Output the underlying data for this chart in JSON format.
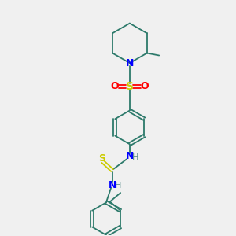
{
  "background_color": "#f0f0f0",
  "bond_color": "#2d7a6b",
  "n_color": "#0000ff",
  "s_color": "#cccc00",
  "o_color": "#ff0000",
  "h_color": "#5a8a8a",
  "line_width": 1.3,
  "figsize": [
    3.0,
    3.0
  ],
  "dpi": 100,
  "xlim": [
    0,
    10
  ],
  "ylim": [
    0,
    10
  ]
}
